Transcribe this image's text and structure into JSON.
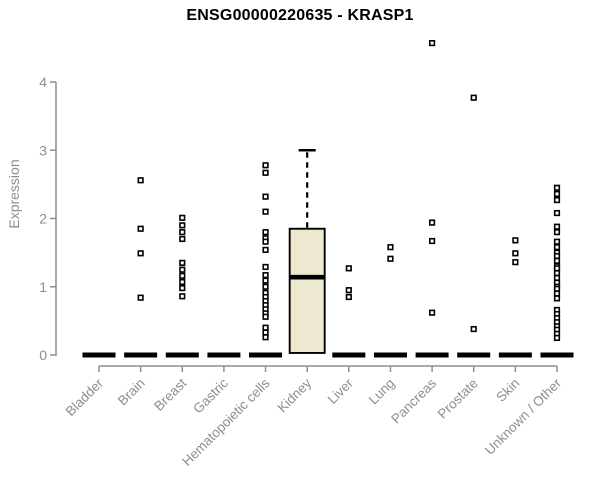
{
  "figure": {
    "title": "ENSG00000220635 - KRASP1"
  },
  "chart_data": {
    "type": "boxplot",
    "title": "ENSG00000220635 - KRASP1",
    "xlabel": "",
    "ylabel": "Expression",
    "ylim": [
      0,
      4
    ],
    "ytick_labels": [
      "0",
      "1",
      "2",
      "3",
      "4"
    ],
    "ytick_values": [
      0,
      1,
      2,
      3,
      4
    ],
    "grid": false,
    "legend": false,
    "categories": [
      "Bladder",
      "Brain",
      "Breast",
      "Gastric",
      "Hematopoietic cells",
      "Kidney",
      "Liver",
      "Lung",
      "Pancreas",
      "Prostate",
      "Skin",
      "Unknown / Other"
    ],
    "groups": [
      {
        "category": "Bladder",
        "box": {
          "q1": 0,
          "median": 0,
          "q3": 0
        },
        "points": []
      },
      {
        "category": "Brain",
        "box": {
          "q1": 0,
          "median": 0,
          "q3": 0
        },
        "points": [
          2.56,
          1.85,
          1.49,
          0.84
        ]
      },
      {
        "category": "Breast",
        "box": {
          "q1": 0,
          "median": 0,
          "q3": 0
        },
        "points": [
          2.01,
          1.9,
          1.8,
          1.7,
          1.35,
          1.25,
          1.16,
          1.07,
          0.98,
          0.86
        ]
      },
      {
        "category": "Gastric",
        "box": {
          "q1": 0,
          "median": 0,
          "q3": 0
        },
        "points": []
      },
      {
        "category": "Hematopoietic cells",
        "box": {
          "q1": 0,
          "median": 0,
          "q3": 0
        },
        "points": [
          2.78,
          2.67,
          2.32,
          2.1,
          1.8,
          1.71,
          1.66,
          1.54,
          1.29,
          1.17,
          1.09,
          1.0,
          0.91,
          0.85,
          0.79,
          0.73,
          0.67,
          0.61,
          0.56,
          0.4,
          0.33,
          0.26
        ]
      },
      {
        "category": "Kidney",
        "box": {
          "q1": 0.03,
          "median": 1.14,
          "q3": 1.85,
          "whisker_high": 3.0
        },
        "points": []
      },
      {
        "category": "Liver",
        "box": {
          "q1": 0,
          "median": 0,
          "q3": 0
        },
        "points": [
          1.27,
          0.95,
          0.85
        ]
      },
      {
        "category": "Lung",
        "box": {
          "q1": 0,
          "median": 0,
          "q3": 0
        },
        "points": [
          1.58,
          1.41
        ]
      },
      {
        "category": "Pancreas",
        "box": {
          "q1": 0,
          "median": 0,
          "q3": 0
        },
        "points": [
          4.57,
          1.94,
          1.67,
          0.62
        ]
      },
      {
        "category": "Prostate",
        "box": {
          "q1": 0,
          "median": 0,
          "q3": 0
        },
        "points": [
          3.77,
          0.38
        ]
      },
      {
        "category": "Skin",
        "box": {
          "q1": 0,
          "median": 0,
          "q3": 0
        },
        "points": [
          1.68,
          1.49,
          1.36
        ]
      },
      {
        "category": "Unknown / Other",
        "box": {
          "q1": 0,
          "median": 0,
          "q3": 0
        },
        "points": [
          2.45,
          2.36,
          2.27,
          2.08,
          1.88,
          1.8,
          1.66,
          1.58,
          1.5,
          1.45,
          1.38,
          1.3,
          1.27,
          1.2,
          1.13,
          1.06,
          1.0,
          0.97,
          0.9,
          0.83,
          0.66,
          0.6,
          0.54,
          0.48,
          0.42,
          0.37,
          0.31,
          0.25
        ]
      }
    ],
    "colors": {
      "background": "#FFFFFF",
      "axis": "#8E8E8E",
      "tick_label": "#8E8E8E",
      "title": "#000000",
      "box_fill": "#EDE8CF",
      "box_border": "#000000",
      "median": "#000000",
      "points": "#000000",
      "point_fill": "#FFFFFF"
    }
  }
}
